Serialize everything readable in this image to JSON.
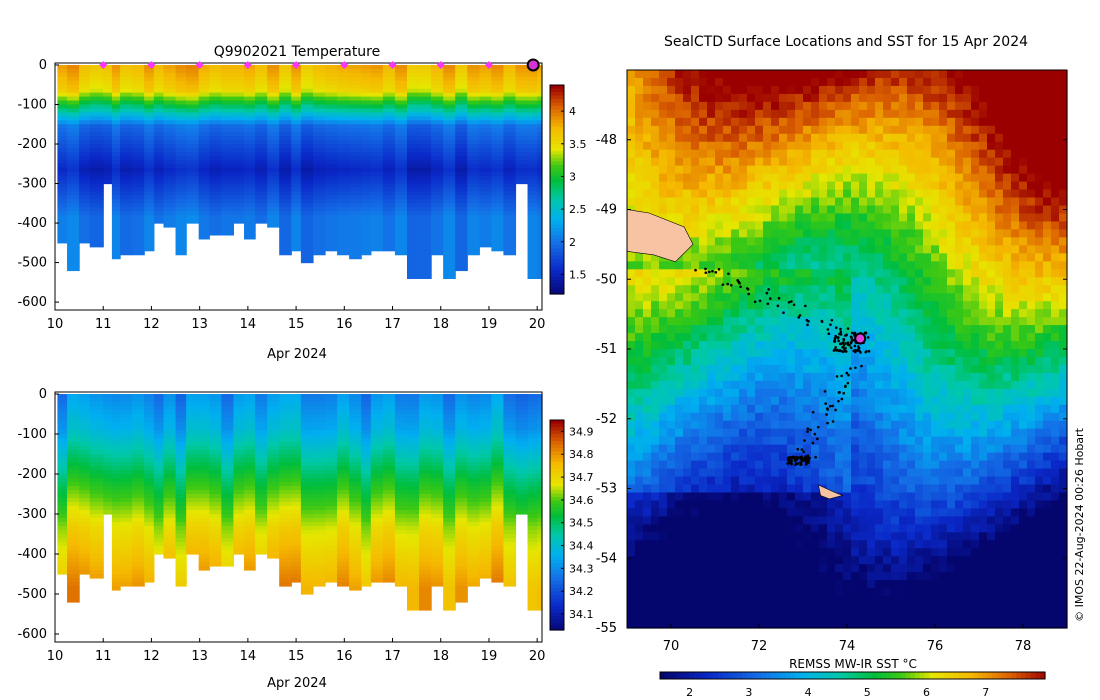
{
  "chart_data": [
    {
      "type": "heatmap",
      "name": "temperature-section",
      "title": "Q9902021  Temperature",
      "xlabel": "Apr 2024",
      "xlim": [
        10,
        20.1
      ],
      "ylim": [
        -620,
        5
      ],
      "x_ticks": [
        10,
        11,
        12,
        13,
        14,
        15,
        16,
        17,
        18,
        19,
        20
      ],
      "y_ticks": [
        0,
        -100,
        -200,
        -300,
        -400,
        -500,
        -600
      ],
      "colorbar": {
        "min": 1.2,
        "max": 4.4,
        "ticks": [
          1.5,
          2,
          2.5,
          3,
          3.5,
          4
        ]
      },
      "surface_markers_x": [
        11,
        12,
        13,
        14,
        15,
        16,
        17,
        18,
        19,
        20
      ],
      "profile_days": [
        10.05,
        10.25,
        10.5,
        10.72,
        11.0,
        11.18,
        11.35,
        11.6,
        11.85,
        12.05,
        12.25,
        12.5,
        12.72,
        12.98,
        13.2,
        13.45,
        13.7,
        13.92,
        14.15,
        14.4,
        14.65,
        14.9,
        15.1,
        15.35,
        15.6,
        15.85,
        16.1,
        16.35,
        16.55,
        16.8,
        17.05,
        17.3,
        17.55,
        17.8,
        18.05,
        18.3,
        18.55,
        18.8,
        19.05,
        19.3,
        19.55,
        19.8,
        20.0
      ],
      "profile_max_depth": [
        445,
        515,
        450,
        460,
        300,
        485,
        480,
        475,
        470,
        400,
        405,
        475,
        400,
        435,
        430,
        430,
        400,
        435,
        400,
        405,
        475,
        470,
        495,
        480,
        465,
        480,
        485,
        480,
        465,
        470,
        480,
        535,
        540,
        480,
        540,
        520,
        480,
        460,
        470,
        480,
        300,
        535,
        540
      ]
    },
    {
      "type": "heatmap",
      "name": "salinity-section",
      "title": "",
      "xlabel": "Apr 2024",
      "xlim": [
        10,
        20.1
      ],
      "ylim": [
        -620,
        5
      ],
      "x_ticks": [
        10,
        11,
        12,
        13,
        14,
        15,
        16,
        17,
        18,
        19,
        20
      ],
      "y_ticks": [
        0,
        -100,
        -200,
        -300,
        -400,
        -500,
        -600
      ],
      "colorbar": {
        "min": 34.03,
        "max": 34.95,
        "ticks": [
          34.1,
          34.2,
          34.3,
          34.4,
          34.5,
          34.6,
          34.7,
          34.8,
          34.9
        ]
      }
    },
    {
      "type": "heatmap",
      "name": "sst-map",
      "title": "SealCTD Surface Locations and SST for 15 Apr 2024",
      "xlim": [
        69,
        79
      ],
      "ylim": [
        -55,
        -47
      ],
      "x_ticks": [
        70,
        72,
        74,
        76,
        78
      ],
      "y_ticks": [
        -48,
        -49,
        -50,
        -51,
        -52,
        -53,
        -54,
        -55
      ],
      "colorbar": {
        "label": "REMSS MW-IR SST °C",
        "min": 1.5,
        "max": 8,
        "ticks": [
          2,
          3,
          4,
          5,
          6,
          7
        ]
      },
      "current_position": [
        74.3,
        -50.85
      ]
    }
  ],
  "credit": "© IMOS 22-Aug-2024 00:26 Hobart"
}
